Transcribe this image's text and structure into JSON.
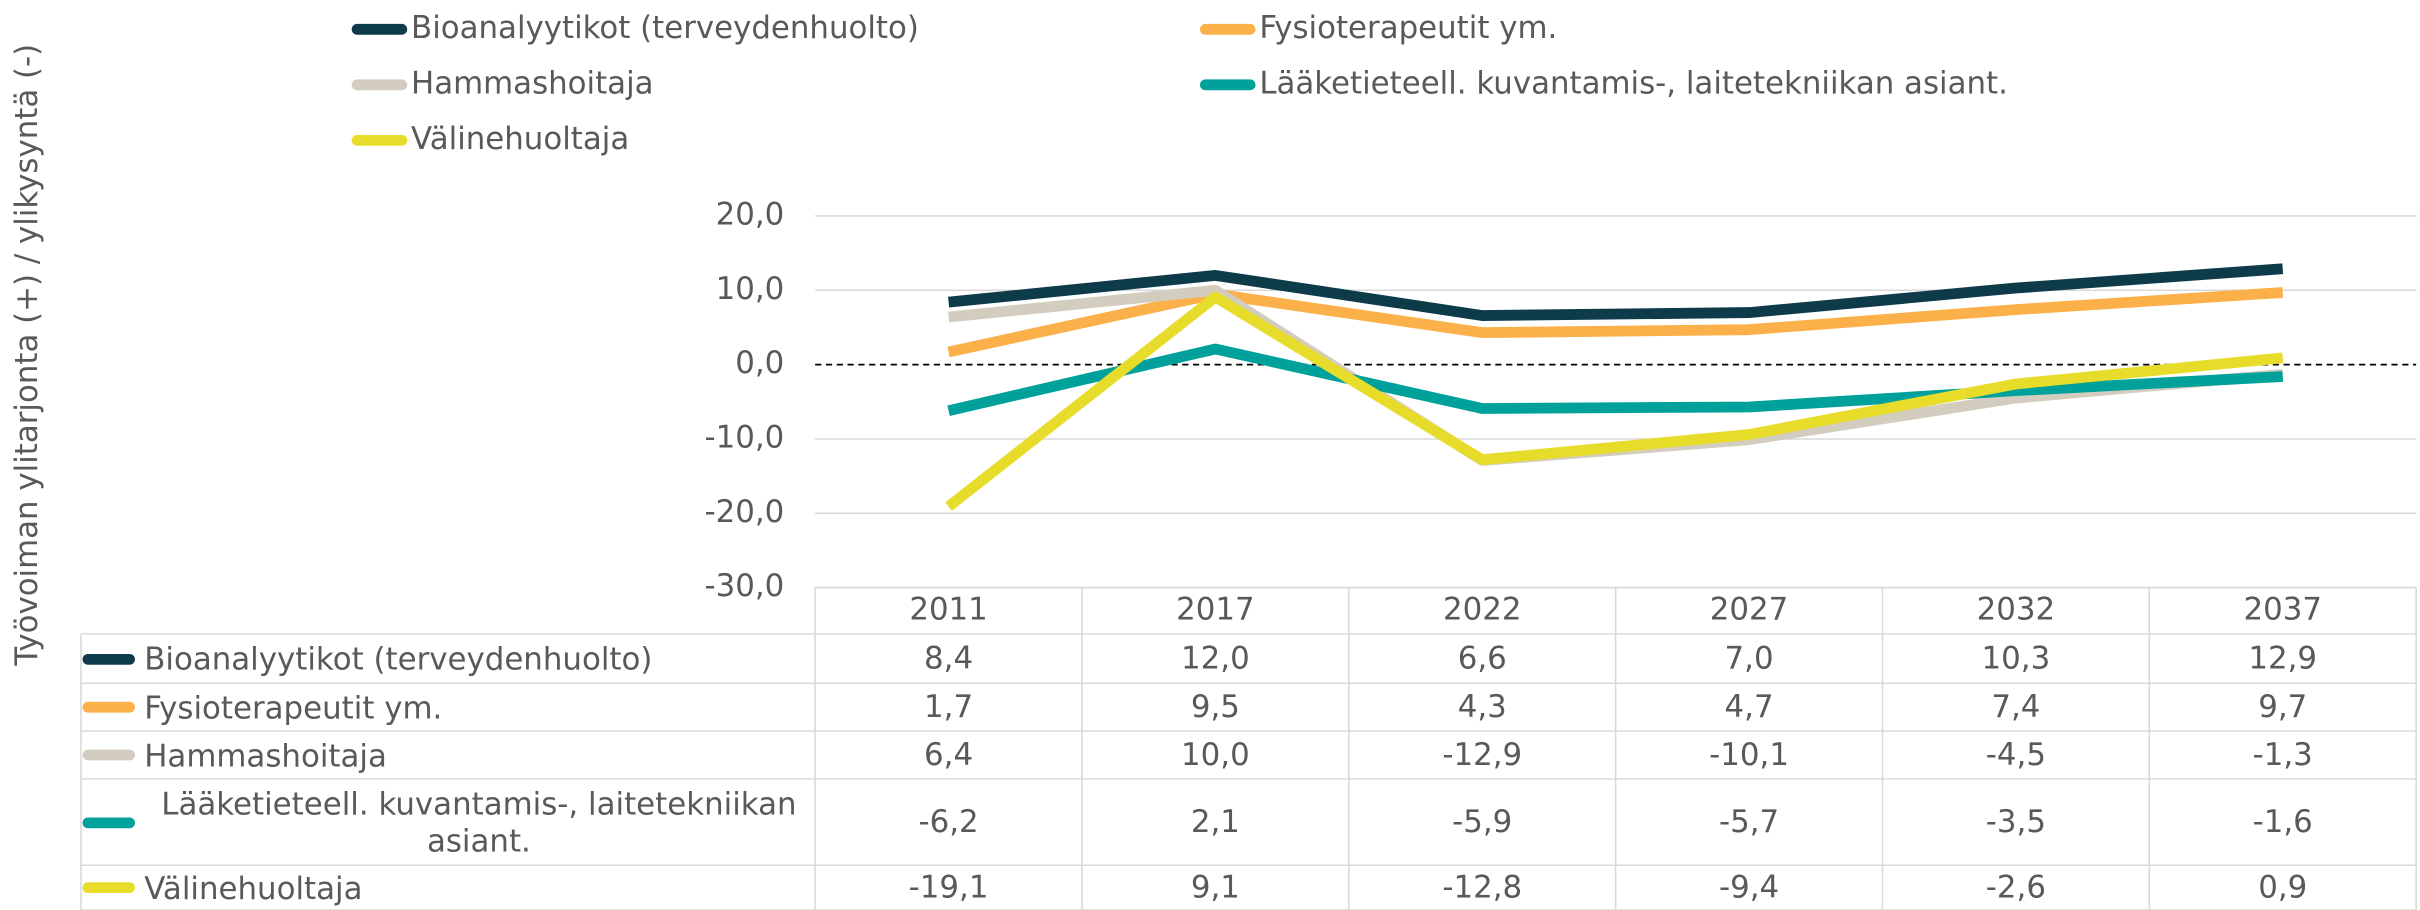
{
  "chart_data": {
    "type": "line",
    "y_label": "Työvoiman ylitarjonta (+) / ylikysyntä (-)",
    "categories": [
      "2011",
      "2017",
      "2022",
      "2027",
      "2032",
      "2037"
    ],
    "ylim": [
      -30,
      20
    ],
    "yticks": [
      {
        "value": -30,
        "label": "-30,0"
      },
      {
        "value": -20,
        "label": "-20,0"
      },
      {
        "value": -10,
        "label": "-10,0"
      },
      {
        "value": 0,
        "label": "0,0"
      },
      {
        "value": 10,
        "label": "10,0"
      },
      {
        "value": 20,
        "label": "20,0"
      }
    ],
    "grid": true,
    "zero_line": "dashed",
    "series": [
      {
        "name": "Bioanalyytikot (terveydenhuolto)",
        "color": "#0d3b4a",
        "values": [
          8.4,
          12.0,
          6.6,
          7.0,
          10.3,
          12.9
        ],
        "value_labels": [
          "8,4",
          "12,0",
          "6,6",
          "7,0",
          "10,3",
          "12,9"
        ]
      },
      {
        "name": "Fysioterapeutit ym.",
        "color": "#fbb04a",
        "values": [
          1.7,
          9.5,
          4.3,
          4.7,
          7.4,
          9.7
        ],
        "value_labels": [
          "1,7",
          "9,5",
          "4,3",
          "4,7",
          "7,4",
          "9,7"
        ]
      },
      {
        "name": "Hammashoitaja",
        "color": "#d3cdbf",
        "values": [
          6.4,
          10.0,
          -12.9,
          -10.1,
          -4.5,
          -1.3
        ],
        "value_labels": [
          "6,4",
          "10,0",
          "-12,9",
          "-10,1",
          "-4,5",
          "-1,3"
        ]
      },
      {
        "name": "Lääketieteell. kuvantamis-, laitetekniikan asiant.",
        "color": "#00a19a",
        "values": [
          -6.2,
          2.1,
          -5.9,
          -5.7,
          -3.5,
          -1.6
        ],
        "value_labels": [
          "-6,2",
          "2,1",
          "-5,9",
          "-5,7",
          "-3,5",
          "-1,6"
        ]
      },
      {
        "name": "Välinehuoltaja",
        "color": "#e8dc2a",
        "values": [
          -19.1,
          9.1,
          -12.8,
          -9.4,
          -2.6,
          0.9
        ],
        "value_labels": [
          "-19,1",
          "9,1",
          "-12,8",
          "-9,4",
          "-2,6",
          "0,9"
        ]
      }
    ]
  }
}
